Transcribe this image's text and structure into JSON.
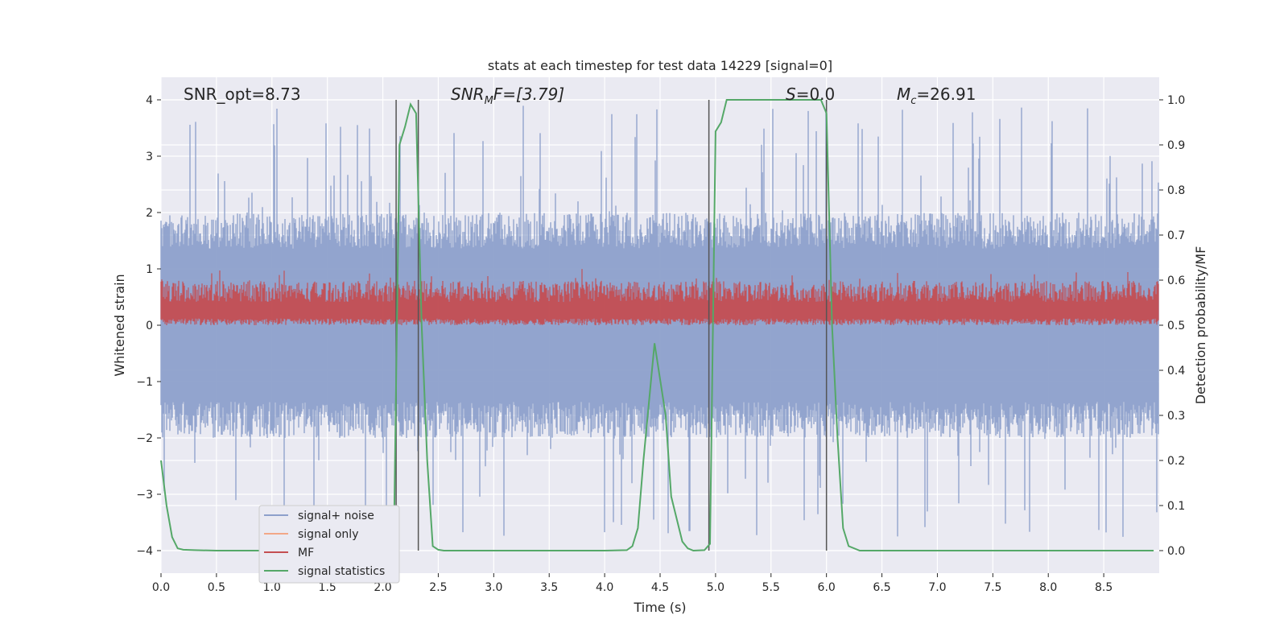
{
  "chart_data": {
    "type": "line",
    "title": "stats at each timestep for test data 14229 [signal=0]",
    "xlabel": "Time (s)",
    "ylabel": "Whitened strain",
    "ylabel_right": "Detection probability/MF",
    "xlim": [
      0.0,
      9.0
    ],
    "ylim": [
      -4.4,
      4.4
    ],
    "ylim_right": [
      -0.05,
      1.05
    ],
    "x_ticks": [
      0.0,
      0.5,
      1.0,
      1.5,
      2.0,
      2.5,
      3.0,
      3.5,
      4.0,
      4.5,
      5.0,
      5.5,
      6.0,
      6.5,
      7.0,
      7.5,
      8.0,
      8.5
    ],
    "x_tick_labels": [
      "0.0",
      "0.5",
      "1.0",
      "1.5",
      "2.0",
      "2.5",
      "3.0",
      "3.5",
      "4.0",
      "4.5",
      "5.0",
      "5.5",
      "6.0",
      "6.5",
      "7.0",
      "7.5",
      "8.0",
      "8.5"
    ],
    "y_ticks": [
      -4,
      -3,
      -2,
      -1,
      0,
      1,
      2,
      3,
      4
    ],
    "y_tick_labels": [
      "−4",
      "−3",
      "−2",
      "−1",
      "0",
      "1",
      "2",
      "3",
      "4"
    ],
    "y_ticks_right": [
      0.0,
      0.1,
      0.2,
      0.3,
      0.4,
      0.5,
      0.6,
      0.7,
      0.8,
      0.9,
      1.0
    ],
    "y_tick_labels_right": [
      "0.0",
      "0.1",
      "0.2",
      "0.3",
      "0.4",
      "0.5",
      "0.6",
      "0.7",
      "0.8",
      "0.9",
      "1.0"
    ],
    "annotations": {
      "snr_opt": "SNR_opt=8.73",
      "snr_mf_name": "SNR",
      "snr_mf_sub": "M",
      "snr_mf_rest": "F=[3.79]",
      "s_name": "S",
      "s_rest": "=0.0",
      "mc_name": "M",
      "mc_sub": "c",
      "mc_rest": "=26.91"
    },
    "noise_band": {
      "description_bands": [
        {
          "upper": 1.6,
          "lower": -1.6,
          "peak_max": 3.9,
          "peak_min": -3.9
        }
      ]
    },
    "mf_band": {
      "lower": 0.0,
      "upper": 0.75,
      "peak": 1.0
    },
    "signal_statistics": {
      "x": [
        0.0,
        0.05,
        0.1,
        0.15,
        0.2,
        0.3,
        0.5,
        1.0,
        1.5,
        2.0,
        2.05,
        2.1,
        2.15,
        2.2,
        2.25,
        2.3,
        2.35,
        2.4,
        2.45,
        2.5,
        2.55,
        3.0,
        3.5,
        4.0,
        4.2,
        4.25,
        4.3,
        4.35,
        4.45,
        4.55,
        4.6,
        4.7,
        4.75,
        4.8,
        4.9,
        4.95,
        5.0,
        5.05,
        5.1,
        5.5,
        5.8,
        5.95,
        6.0,
        6.05,
        6.1,
        6.15,
        6.2,
        6.3,
        7.0,
        8.0,
        8.95
      ],
      "y": [
        0.2,
        0.1,
        0.03,
        0.005,
        0.002,
        0.001,
        0.0,
        0.0,
        0.0,
        0.0,
        0.005,
        0.02,
        0.9,
        0.94,
        0.99,
        0.97,
        0.5,
        0.2,
        0.01,
        0.002,
        0.0,
        0.0,
        0.0,
        0.0,
        0.001,
        0.01,
        0.05,
        0.2,
        0.46,
        0.3,
        0.12,
        0.02,
        0.005,
        0.0,
        0.001,
        0.015,
        0.93,
        0.95,
        1.0,
        1.0,
        1.0,
        1.0,
        0.97,
        0.5,
        0.25,
        0.05,
        0.01,
        0.0,
        0.0,
        0.0,
        0.0
      ]
    },
    "vertical_lines_x": [
      2.12,
      2.32,
      4.94,
      6.0
    ],
    "legend": [
      {
        "label": "signal+ noise",
        "color": "#8da0cb"
      },
      {
        "label": "signal only",
        "color": "#f2a787"
      },
      {
        "label": "MF",
        "color": "#c44e52"
      },
      {
        "label": "signal statistics",
        "color": "#55a868"
      }
    ],
    "legend_position": "lower-left",
    "colors": {
      "background": "#eaeaf2",
      "noise": "#8da0cb",
      "mf": "#c44e52",
      "stat": "#55a868",
      "vline": "#555555"
    }
  }
}
